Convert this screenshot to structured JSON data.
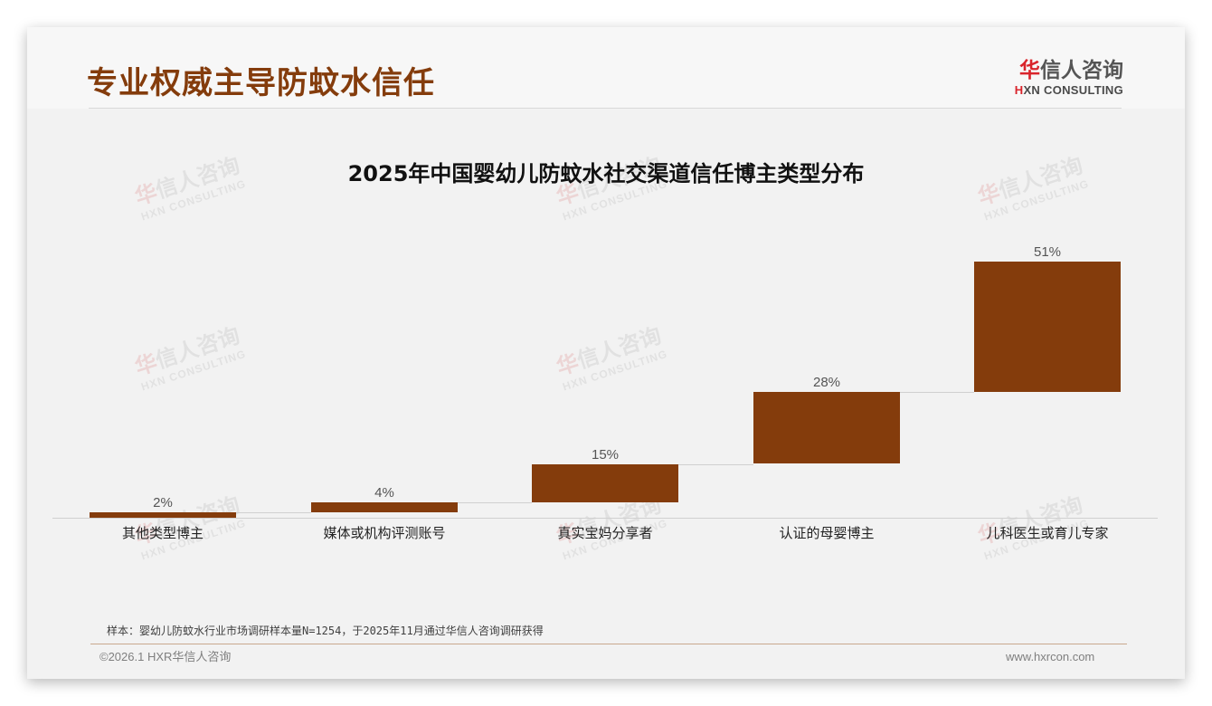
{
  "header": {
    "title": "专业权威主导防蚊水信任",
    "logo": {
      "cn_first": "华",
      "cn_rest": "信人咨询",
      "en_first": "H",
      "en_rest": "XN CONSULTING"
    }
  },
  "watermark": {
    "cn_first": "华",
    "cn_rest": "信人咨询",
    "en": "HXN CONSULTING"
  },
  "chart_data": {
    "type": "bar",
    "subtype": "waterfall",
    "title": "2025年中国婴幼儿防蚊水社交渠道信任博主类型分布",
    "categories": [
      "其他类型博主",
      "媒体或机构评测账号",
      "真实宝妈分享者",
      "认证的母婴博主",
      "儿科医生或育儿专家"
    ],
    "values": [
      2,
      4,
      15,
      28,
      51
    ],
    "value_labels": [
      "2%",
      "4%",
      "15%",
      "28%",
      "51%"
    ],
    "cumulative_start": [
      0,
      2,
      6,
      21,
      49
    ],
    "unit": "%",
    "xlabel": "",
    "ylabel": "",
    "ylim": [
      0,
      100
    ],
    "grid": false,
    "legend": null,
    "bar_color": "#843c0c"
  },
  "footer": {
    "note": "样本：婴幼儿防蚊水行业市场调研样本量N=1254，于2025年11月通过华信人咨询调研获得",
    "copyright": "©2026.1 HXR华信人咨询",
    "website": "www.hxrcon.com"
  }
}
